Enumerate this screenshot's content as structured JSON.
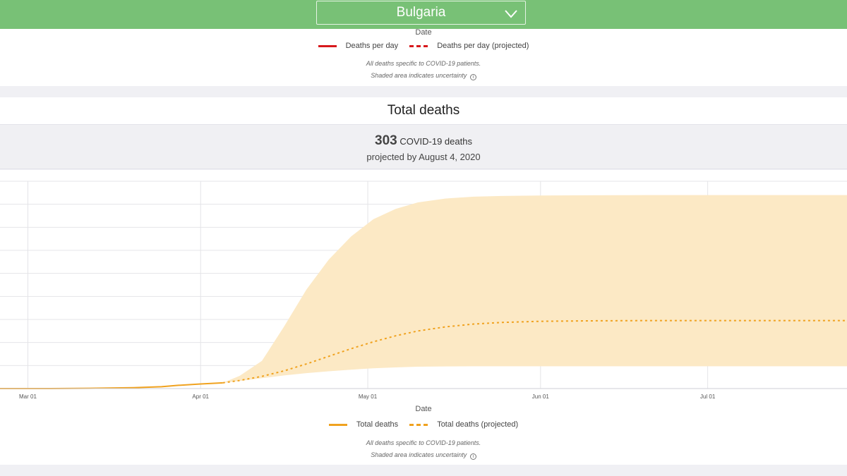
{
  "header": {
    "country": "Bulgaria",
    "chevron_icon": "chevron-down-icon"
  },
  "deaths_per_day_panel": {
    "x_axis_title": "Date",
    "legend": {
      "actual": "Deaths per day",
      "projected": "Deaths per day (projected)"
    },
    "note_1": "All deaths specific to COVID-19 patients.",
    "note_2": "Shaded area indicates uncertainty"
  },
  "total_deaths_panel": {
    "title": "Total deaths",
    "stat_number": "303",
    "stat_label": "COVID-19 deaths",
    "stat_subtitle": "projected by August 4, 2020",
    "x_axis_title": "Date",
    "legend": {
      "actual": "Total deaths",
      "projected": "Total deaths (projected)"
    },
    "note_1": "All deaths specific to COVID-19 patients.",
    "note_2": "Shaded area indicates uncertainty"
  },
  "colors": {
    "header_green": "#78c176",
    "deaths_red": "#d7191c",
    "total_orange": "#f0a21f",
    "uncertainty_fill": "#fce9c5"
  },
  "chart_data": {
    "type": "area",
    "title": "Total deaths",
    "xlabel": "Date",
    "ylabel": "",
    "x_ticks": [
      "Mar 01",
      "Apr 01",
      "May 01",
      "Jun 01",
      "Jul 01"
    ],
    "xlim": [
      "2020-02-25",
      "2020-07-26"
    ],
    "ylim": [
      0,
      900
    ],
    "y_tick_labels_visible": false,
    "grid": true,
    "legend_position": "bottom",
    "series": [
      {
        "name": "Total deaths",
        "style": "solid",
        "x": [
          "2020-02-25",
          "2020-03-05",
          "2020-03-12",
          "2020-03-20",
          "2020-03-25",
          "2020-03-28",
          "2020-04-01",
          "2020-04-05"
        ],
        "y": [
          0,
          0,
          1,
          4,
          8,
          14,
          20,
          25
        ]
      },
      {
        "name": "Total deaths (projected)",
        "style": "dashed",
        "x": [
          "2020-04-05",
          "2020-04-08",
          "2020-04-12",
          "2020-04-16",
          "2020-04-20",
          "2020-04-24",
          "2020-04-28",
          "2020-05-02",
          "2020-05-06",
          "2020-05-10",
          "2020-05-15",
          "2020-05-20",
          "2020-05-25",
          "2020-06-01",
          "2020-06-10",
          "2020-06-20",
          "2020-07-01",
          "2020-07-15",
          "2020-07-26"
        ],
        "y": [
          25,
          35,
          53,
          77,
          107,
          140,
          173,
          203,
          229,
          250,
          268,
          280,
          287,
          292,
          294,
          295,
          295,
          295,
          295
        ]
      }
    ],
    "uncertainty_band": {
      "name": "Uncertainty",
      "x": [
        "2020-04-05",
        "2020-04-08",
        "2020-04-12",
        "2020-04-16",
        "2020-04-20",
        "2020-04-24",
        "2020-04-28",
        "2020-05-02",
        "2020-05-06",
        "2020-05-10",
        "2020-05-15",
        "2020-05-20",
        "2020-05-25",
        "2020-06-01",
        "2020-06-10",
        "2020-06-20",
        "2020-07-01",
        "2020-07-26"
      ],
      "lower": [
        25,
        33,
        45,
        57,
        67,
        75,
        82,
        88,
        92,
        95,
        96,
        97,
        97,
        97,
        97,
        97,
        97,
        97
      ],
      "upper": [
        25,
        55,
        120,
        270,
        430,
        560,
        660,
        735,
        780,
        808,
        825,
        833,
        836,
        838,
        839,
        840,
        840,
        840
      ]
    }
  }
}
